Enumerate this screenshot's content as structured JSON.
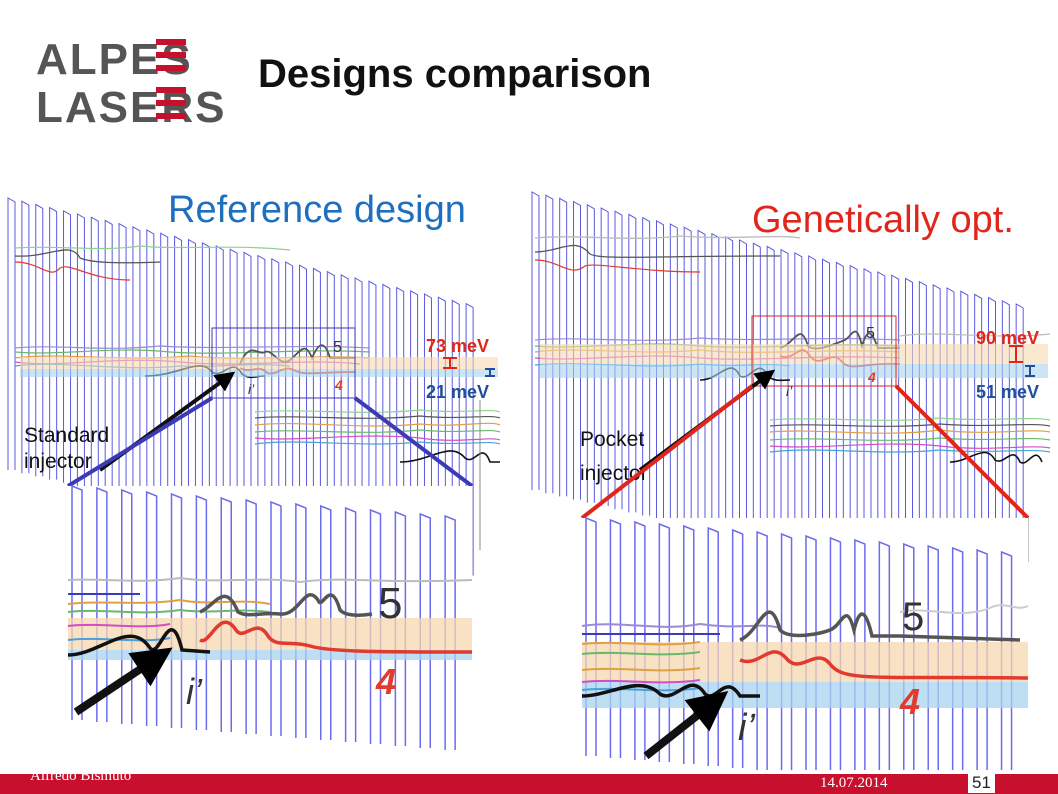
{
  "logo": {
    "line1": "ALPES",
    "line2": "LASERS",
    "colors": {
      "text": "#555555",
      "accent": "#c8102e"
    }
  },
  "title": "Designs comparison",
  "panels": {
    "left": {
      "heading": "Reference design",
      "heading_color": "#1f6fbf",
      "energy_top": "73 meV",
      "energy_bottom": "21 meV",
      "energy_color_top": "#e1251b",
      "energy_color_bottom": "#1f4e9b",
      "level_upper": "5",
      "level_lower": "4",
      "injector_level": "i’",
      "injector_label_line1": "Standard",
      "injector_label_line2": "injector",
      "connector_color": "#3d3ab8"
    },
    "right": {
      "heading": "Genetically opt.",
      "heading_color": "#e1251b",
      "energy_top": "90 meV",
      "energy_bottom": "51 meV",
      "energy_color_top": "#e1251b",
      "energy_color_bottom": "#1f4e9b",
      "level_upper": "5",
      "level_lower": "4",
      "injector_level": "i’",
      "injector_label_line1": "Pocket",
      "injector_label_line2": "injector",
      "connector_color": "#e1251b"
    }
  },
  "footer": {
    "author": "Alfredo Bismuto",
    "date": "14.07.2014",
    "slide_number": "51",
    "bar_color": "#c8102e"
  }
}
